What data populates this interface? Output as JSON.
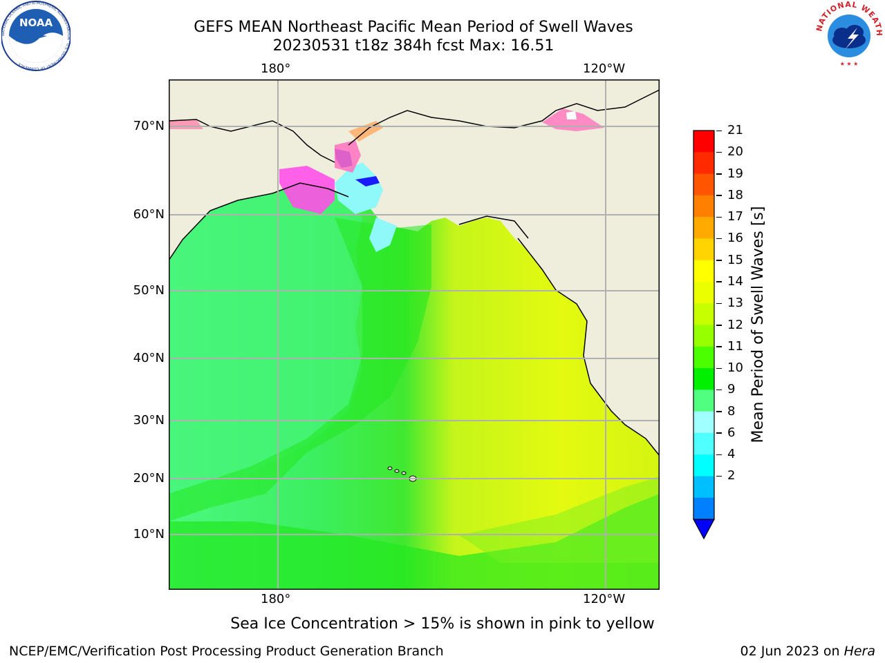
{
  "title_line1": "GEFS MEAN Northeast Pacific Mean Period of Swell Waves",
  "title_line2": "20230531 t18z 384h fcst   Max: 16.51",
  "map": {
    "lon_labels_top": [
      "180°",
      "120°W"
    ],
    "lon_labels_bottom": [
      "180°",
      "120°W"
    ],
    "lat_labels": [
      "70°N",
      "60°N",
      "50°N",
      "40°N",
      "30°N",
      "20°N",
      "10°N"
    ]
  },
  "colorbar": {
    "label": "Mean Period of Swell Waves [s]",
    "ticks": [
      "21",
      "20",
      "19",
      "18",
      "17",
      "16",
      "15",
      "14",
      "13",
      "12",
      "11",
      "10",
      "9",
      "8",
      "6",
      "4",
      "2"
    ],
    "colors": [
      "#ff0000",
      "#ff2a00",
      "#ff5500",
      "#ff8000",
      "#ffaa00",
      "#ffd400",
      "#ffff00",
      "#ecff00",
      "#c8ff00",
      "#96ff00",
      "#4bff00",
      "#00f000",
      "#50ff80",
      "#a0ffff",
      "#50ffff",
      "#00ffff",
      "#00bfff",
      "#0080ff"
    ],
    "underflow_color": "#0000ff"
  },
  "note": "Sea Ice Concentration > 15% is shown in pink to yellow",
  "footer_left": "NCEP/EMC/Verification Post Processing Product Generation Branch",
  "footer_right_prefix": "02 Jun 2023 on ",
  "footer_right_host": "Hera",
  "logos": {
    "noaa": "NOAA",
    "noaa_ring": "NATIONAL OCEANIC AND ATMOSPHERIC ADMINISTRATION · U.S. DEPARTMENT OF COMMERCE ·",
    "nws_ring": "NATIONAL WEATHER SERVICE"
  },
  "icons": {
    "noaa": "noaa-logo-icon",
    "nws": "nws-logo-icon"
  }
}
